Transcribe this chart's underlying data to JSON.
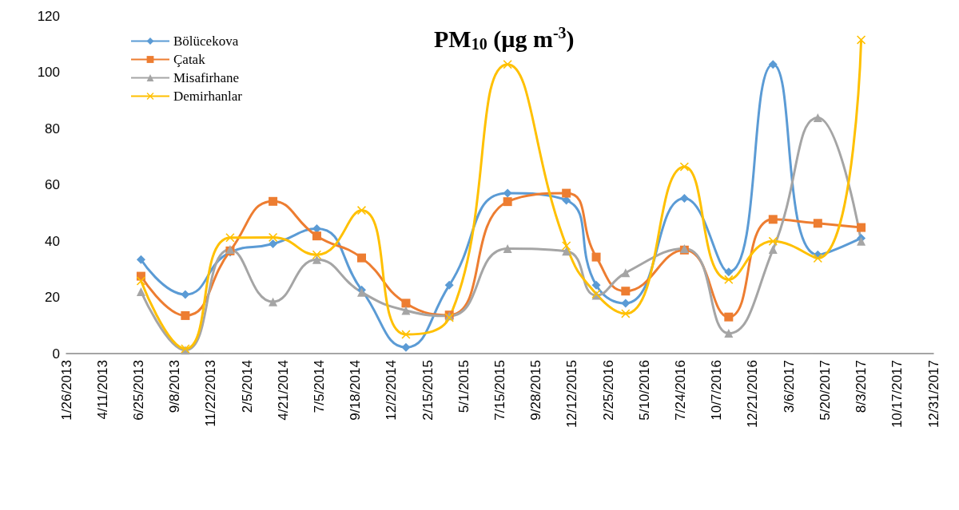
{
  "chart_data": {
    "type": "line",
    "title": "PM$_{10}$ (µg m$^{-3}$)",
    "x": [
      "2013-06-30",
      "2013-09-30",
      "2014-01-01",
      "2014-03-31",
      "2014-06-30",
      "2014-10-01",
      "2015-01-01",
      "2015-04-01",
      "2015-07-31",
      "2015-11-30",
      "2016-01-31",
      "2016-04-01",
      "2016-08-01",
      "2016-11-01",
      "2017-02-01",
      "2017-05-05",
      "2017-08-03"
    ],
    "series": [
      {
        "name": "Bölücekova",
        "color": "#5b9bd5",
        "marker": "diamond",
        "values": [
          33.4,
          21,
          36,
          39,
          44.4,
          22.6,
          2.2,
          24.3,
          57,
          54.5,
          24.3,
          17.9,
          55.2,
          29,
          102.8,
          35.1,
          41
        ]
      },
      {
        "name": "Çatak",
        "color": "#ed7d31",
        "marker": "square",
        "values": [
          27.5,
          13.5,
          36.5,
          54.1,
          41.8,
          34,
          17.9,
          13.7,
          54,
          57,
          34.3,
          22.2,
          36.8,
          13,
          47.7,
          46.3,
          44.8
        ]
      },
      {
        "name": "Misafirhane",
        "color": "#a5a5a5",
        "marker": "triangle",
        "values": [
          22,
          1.2,
          37,
          18.4,
          33.4,
          21.8,
          15.3,
          13.4,
          37.3,
          36.4,
          20.7,
          28.7,
          37.3,
          7.2,
          37,
          83.8,
          39.9
        ]
      },
      {
        "name": "Demirhanlar",
        "color": "#ffc000",
        "marker": "cross",
        "values": [
          25.8,
          1.7,
          41.2,
          41.3,
          35.1,
          50.9,
          6.8,
          12.8,
          102.8,
          38.3,
          21.2,
          14.2,
          66.4,
          26.3,
          39.9,
          33.9,
          111.5
        ]
      }
    ],
    "xlim": [
      "2013-01-26",
      "2017-12-31"
    ],
    "xticks": [
      {
        "value": "2013-01-26",
        "label": "1/26/2013"
      },
      {
        "value": "2013-04-11",
        "label": "4/11/2013"
      },
      {
        "value": "2013-06-25",
        "label": "6/25/2013"
      },
      {
        "value": "2013-09-08",
        "label": "9/8/2013"
      },
      {
        "value": "2013-11-22",
        "label": "11/22/2013"
      },
      {
        "value": "2014-02-05",
        "label": "2/5/2014"
      },
      {
        "value": "2014-04-21",
        "label": "4/21/2014"
      },
      {
        "value": "2014-07-05",
        "label": "7/5/2014"
      },
      {
        "value": "2014-09-18",
        "label": "9/18/2014"
      },
      {
        "value": "2014-12-02",
        "label": "12/2/2014"
      },
      {
        "value": "2015-02-15",
        "label": "2/15/2015"
      },
      {
        "value": "2015-05-01",
        "label": "5/1/2015"
      },
      {
        "value": "2015-07-15",
        "label": "7/15/2015"
      },
      {
        "value": "2015-09-28",
        "label": "9/28/2015"
      },
      {
        "value": "2015-12-12",
        "label": "12/12/2015"
      },
      {
        "value": "2016-02-25",
        "label": "2/25/2016"
      },
      {
        "value": "2016-05-10",
        "label": "5/10/2016"
      },
      {
        "value": "2016-07-24",
        "label": "7/24/2016"
      },
      {
        "value": "2016-10-07",
        "label": "10/7/2016"
      },
      {
        "value": "2016-12-21",
        "label": "12/21/2016"
      },
      {
        "value": "2017-03-06",
        "label": "3/6/2017"
      },
      {
        "value": "2017-05-20",
        "label": "5/20/2017"
      },
      {
        "value": "2017-08-03",
        "label": "8/3/2017"
      },
      {
        "value": "2017-10-17",
        "label": "10/17/2017"
      },
      {
        "value": "2017-12-31",
        "label": "12/31/2017"
      }
    ],
    "ylim": [
      0,
      120
    ],
    "yticks": [
      0,
      20,
      40,
      60,
      80,
      100,
      120
    ],
    "grid": false,
    "legend": "top left",
    "line_style": "solid"
  }
}
